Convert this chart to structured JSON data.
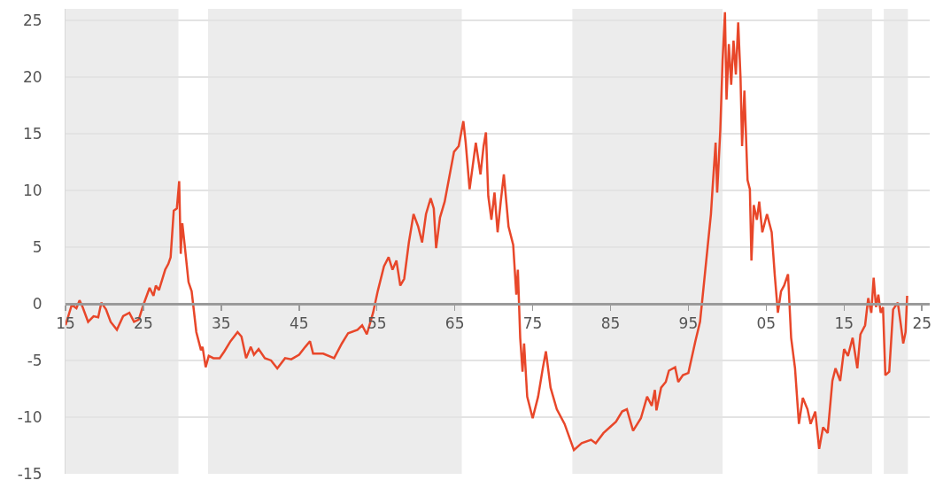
{
  "chart_data": {
    "type": "line",
    "color": "#e8472a",
    "x": [
      1915,
      1915.8,
      1916.4,
      1916.8,
      1917.2,
      1917.9,
      1918.6,
      1919.2,
      1919.6,
      1920.2,
      1920.8,
      1921.6,
      1922.4,
      1923.2,
      1923.8,
      1924.4,
      1925,
      1925.8,
      1926.3,
      1926.6,
      1927,
      1927.8,
      1928.2,
      1928.5,
      1928.9,
      1929.3,
      1929.6,
      1929.8,
      1930,
      1930.3,
      1930.8,
      1931.2,
      1931.8,
      1932.4,
      1932.6,
      1933,
      1933.4,
      1934,
      1934.8,
      1935.4,
      1936.2,
      1937.1,
      1937.6,
      1938.2,
      1938.8,
      1939.2,
      1939.8,
      1940.6,
      1941.4,
      1942.2,
      1943.2,
      1944,
      1945,
      1945.8,
      1946.4,
      1946.8,
      1947.4,
      1948.1,
      1949.5,
      1950.5,
      1951.3,
      1952.5,
      1953.1,
      1953.7,
      1954.5,
      1955.1,
      1955.9,
      1956.5,
      1957,
      1957.5,
      1958,
      1958.5,
      1959.1,
      1959.7,
      1960.3,
      1960.8,
      1961.3,
      1961.9,
      1962.3,
      1962.6,
      1963.1,
      1963.7,
      1964.3,
      1964.9,
      1965.5,
      1966.1,
      1966.4,
      1966.9,
      1967.7,
      1968.3,
      1968.7,
      1969,
      1969.3,
      1969.7,
      1970.1,
      1970.5,
      1970.9,
      1971.3,
      1971.9,
      1972.5,
      1972.9,
      1973.1,
      1973.4,
      1973.7,
      1973.9,
      1974.3,
      1975,
      1975.7,
      1976.3,
      1976.7,
      1977.3,
      1978.1,
      1979.1,
      1980.3,
      1981.3,
      1982.5,
      1983.1,
      1984.1,
      1984.9,
      1985.7,
      1986.5,
      1987.1,
      1987.9,
      1988.9,
      1989.7,
      1990.3,
      1990.7,
      1990.9,
      1991.5,
      1992.1,
      1992.5,
      1993.3,
      1993.7,
      1994.3,
      1995,
      1995.9,
      1996.5,
      1996.9,
      1997.5,
      1997.9,
      1998.1,
      1998.5,
      1998.7,
      1999.1,
      1999.4,
      1999.7,
      1999.9,
      2000.2,
      2000.5,
      2000.8,
      2001.1,
      2001.4,
      2001.7,
      2001.9,
      2002.2,
      2002.6,
      2002.9,
      2003.1,
      2003.4,
      2003.8,
      2004.1,
      2004.5,
      2005.1,
      2005.7,
      2006.1,
      2006.5,
      2006.9,
      2007.3,
      2007.8,
      2008.2,
      2008.7,
      2009.2,
      2009.7,
      2010.3,
      2010.7,
      2011.3,
      2011.8,
      2012.3,
      2012.9,
      2013.5,
      2013.9,
      2014.5,
      2015,
      2015.5,
      2016.1,
      2016.7,
      2017.1,
      2017.7,
      2018.1,
      2018.5,
      2018.8,
      2019.1,
      2019.4,
      2019.7,
      2020,
      2020.3,
      2020.8,
      2021.3,
      2021.9,
      2022.3,
      2022.6,
      2022.9,
      2023.1
    ],
    "values": [
      -1.9,
      -0.1,
      -0.4,
      0.3,
      -0.3,
      -1.6,
      -1.1,
      -1.2,
      0.1,
      -0.5,
      -1.6,
      -2.3,
      -1.1,
      -0.8,
      -1.6,
      -1.4,
      -0.1,
      1.4,
      0.7,
      1.6,
      1.2,
      3.0,
      3.5,
      4.1,
      8.2,
      8.4,
      10.8,
      4.4,
      7.1,
      5.2,
      1.9,
      1.1,
      -2.5,
      -4.1,
      -3.8,
      -5.6,
      -4.6,
      -4.8,
      -4.8,
      -4.2,
      -3.3,
      -2.5,
      -2.9,
      -4.8,
      -3.8,
      -4.5,
      -4.0,
      -4.8,
      -5.0,
      -5.7,
      -4.8,
      -4.9,
      -4.5,
      -3.8,
      -3.3,
      -4.4,
      -4.4,
      -4.4,
      -4.8,
      -3.5,
      -2.6,
      -2.3,
      -1.9,
      -2.7,
      -0.8,
      1.1,
      3.3,
      4.1,
      3.0,
      3.8,
      1.6,
      2.2,
      5.4,
      7.9,
      6.8,
      5.4,
      7.9,
      9.3,
      8.4,
      4.9,
      7.6,
      9.0,
      11.2,
      13.4,
      13.9,
      16.1,
      14.2,
      10.1,
      14.2,
      11.4,
      13.9,
      15.1,
      9.5,
      7.4,
      9.8,
      6.3,
      9.0,
      11.4,
      6.8,
      5.2,
      0.8,
      3.0,
      -3.0,
      -6.0,
      -3.5,
      -8.2,
      -10.1,
      -8.2,
      -5.7,
      -4.2,
      -7.4,
      -9.3,
      -10.6,
      -12.9,
      -12.3,
      -12.0,
      -12.3,
      -11.4,
      -10.9,
      -10.4,
      -9.5,
      -9.3,
      -11.2,
      -10.1,
      -8.2,
      -9.0,
      -7.6,
      -9.4,
      -7.4,
      -6.9,
      -5.9,
      -5.6,
      -6.9,
      -6.3,
      -6.1,
      -3.3,
      -1.6,
      1.1,
      5.2,
      7.9,
      10.1,
      14.2,
      9.8,
      15.3,
      21.5,
      25.7,
      18.0,
      22.9,
      19.3,
      23.2,
      20.2,
      24.8,
      19.9,
      13.9,
      18.8,
      10.9,
      10.1,
      3.8,
      8.7,
      7.4,
      9.0,
      6.3,
      7.9,
      6.3,
      2.5,
      -0.8,
      1.1,
      1.6,
      2.6,
      -3.0,
      -5.7,
      -10.6,
      -8.3,
      -9.3,
      -10.6,
      -9.5,
      -12.8,
      -10.9,
      -11.4,
      -6.8,
      -5.7,
      -6.8,
      -4.0,
      -4.6,
      -3.0,
      -5.7,
      -2.7,
      -1.9,
      0.5,
      -0.8,
      2.3,
      -0.3,
      0.8,
      -0.8,
      -0.3,
      -6.3,
      -6.0,
      -0.5,
      0.1,
      -1.9,
      -3.5,
      -2.5,
      0.7
    ],
    "xlim": [
      1915,
      2026
    ],
    "xticks": [
      {
        "value": 1915,
        "label": "15"
      },
      {
        "value": 1925,
        "label": "25"
      },
      {
        "value": 1935,
        "label": "35"
      },
      {
        "value": 1945,
        "label": "45"
      },
      {
        "value": 1955,
        "label": "55"
      },
      {
        "value": 1965,
        "label": "65"
      },
      {
        "value": 1975,
        "label": "75"
      },
      {
        "value": 1985,
        "label": "85"
      },
      {
        "value": 1995,
        "label": "95"
      },
      {
        "value": 2005,
        "label": "05"
      },
      {
        "value": 2015,
        "label": "15"
      },
      {
        "value": 2025,
        "label": "25"
      }
    ],
    "ylim": [
      -15,
      26
    ],
    "yticks": [
      -15,
      -10,
      -5,
      0,
      5,
      10,
      15,
      20,
      25
    ],
    "grid": "y",
    "marker": "none",
    "line_style": "solid",
    "bands": [
      {
        "axis": "x",
        "from": 1915,
        "to": 1929.5,
        "color": "#ececec"
      },
      {
        "axis": "x",
        "from": 1933.3,
        "to": 1965.9,
        "color": "#ececec"
      },
      {
        "axis": "x",
        "from": 1980.1,
        "to": 1999.4,
        "color": "#ececec"
      },
      {
        "axis": "x",
        "from": 2011.6,
        "to": 2018.6,
        "color": "#ececec"
      },
      {
        "axis": "x",
        "from": 2020.1,
        "to": 2023.2,
        "color": "#ececec"
      }
    ]
  }
}
